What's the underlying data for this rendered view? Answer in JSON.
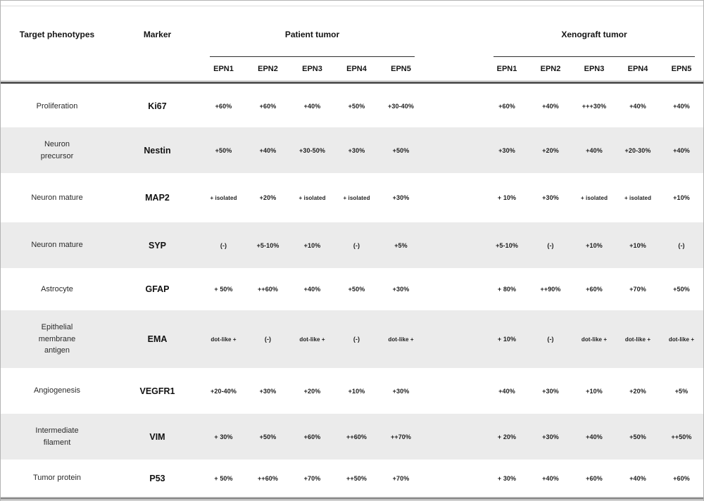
{
  "table": {
    "headers": {
      "phenotype": "Target phenotypes",
      "marker": "Marker",
      "patient_group": "Patient tumor",
      "xenograft_group": "Xenograft tumor",
      "epn": [
        "EPN1",
        "EPN2",
        "EPN3",
        "EPN4",
        "EPN5"
      ]
    },
    "rows": [
      {
        "phenotype": "Proliferation",
        "marker": "Ki67",
        "patient": [
          "+60%",
          "+60%",
          "+40%",
          "+50%",
          "+30-40%"
        ],
        "xenograft": [
          "+60%",
          "+40%",
          "+++30%",
          "+40%",
          "+40%"
        ]
      },
      {
        "phenotype": "Neuron precursor",
        "marker": "Nestin",
        "patient": [
          "+50%",
          "+40%",
          "+30-50%",
          "+30%",
          "+50%"
        ],
        "xenograft": [
          "+30%",
          "+20%",
          "+40%",
          "+20-30%",
          "+40%"
        ]
      },
      {
        "phenotype": "Neuron mature",
        "marker": "MAP2",
        "patient": [
          "+ isolated",
          "+20%",
          "+ isolated",
          "+ isolated",
          "+30%"
        ],
        "xenograft": [
          "+ 10%",
          "+30%",
          "+ isolated",
          "+ isolated",
          "+10%"
        ]
      },
      {
        "phenotype": "Neuron mature",
        "marker": "SYP",
        "patient": [
          "(-)",
          "+5-10%",
          "+10%",
          "(-)",
          "+5%"
        ],
        "xenograft": [
          "+5-10%",
          "(-)",
          "+10%",
          "+10%",
          "(-)"
        ]
      },
      {
        "phenotype": "Astrocyte",
        "marker": "GFAP",
        "patient": [
          "+ 50%",
          "++60%",
          "+40%",
          "+50%",
          "+30%"
        ],
        "xenograft": [
          "+ 80%",
          "++90%",
          "+60%",
          "+70%",
          "+50%"
        ]
      },
      {
        "phenotype": "Epithelial membrane antigen",
        "marker": "EMA",
        "patient": [
          "dot-like +",
          "(-)",
          "dot-like +",
          "(-)",
          "dot-like +"
        ],
        "xenograft": [
          "+ 10%",
          "(-)",
          "dot-like +",
          "dot-like +",
          "dot-like +"
        ]
      },
      {
        "phenotype": "Angiogenesis",
        "marker": "VEGFR1",
        "patient": [
          "+20-40%",
          "+30%",
          "+20%",
          "+10%",
          "+30%"
        ],
        "xenograft": [
          "+40%",
          "+30%",
          "+10%",
          "+20%",
          "+5%"
        ]
      },
      {
        "phenotype": "Intermediate filament",
        "marker": "VIM",
        "patient": [
          "+ 30%",
          "+50%",
          "+60%",
          "++60%",
          "++70%"
        ],
        "xenograft": [
          "+ 20%",
          "+30%",
          "+40%",
          "+50%",
          "++50%"
        ]
      },
      {
        "phenotype": "Tumor protein",
        "marker": "P53",
        "patient": [
          "+ 50%",
          "++60%",
          "+70%",
          "++50%",
          "+70%"
        ],
        "xenograft": [
          "+ 30%",
          "+40%",
          "+60%",
          "+40%",
          "+60%"
        ]
      }
    ]
  }
}
